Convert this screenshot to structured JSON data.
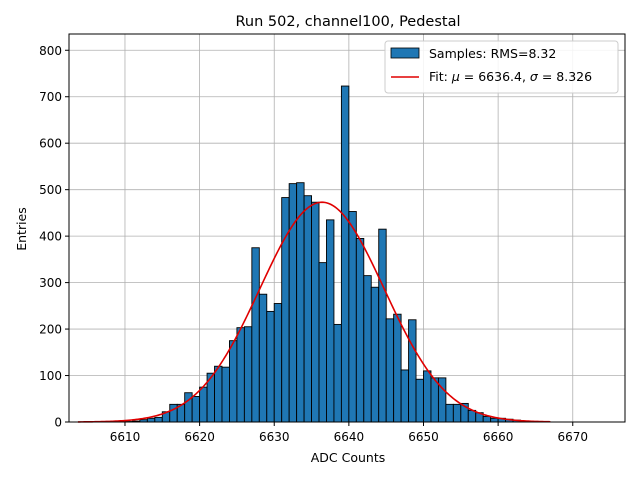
{
  "chart_data": {
    "type": "bar",
    "title": "Run 502, channel100, Pedestal",
    "xlabel": "ADC Counts",
    "ylabel": "Entries",
    "xlim": [
      6602.5,
      6677
    ],
    "ylim": [
      0,
      835
    ],
    "xticks": [
      6610,
      6620,
      6630,
      6640,
      6650,
      6660,
      6670
    ],
    "yticks": [
      0,
      100,
      200,
      300,
      400,
      500,
      600,
      700,
      800
    ],
    "grid": true,
    "legend_position": "top-right",
    "histogram": {
      "name": "Samples: RMS=8.32",
      "color": "#1f77b4",
      "bin_width": 1,
      "bins": [
        {
          "x": 6610,
          "y": 1
        },
        {
          "x": 6611,
          "y": 2
        },
        {
          "x": 6612,
          "y": 5
        },
        {
          "x": 6613,
          "y": 8
        },
        {
          "x": 6614,
          "y": 10
        },
        {
          "x": 6615,
          "y": 22
        },
        {
          "x": 6616,
          "y": 38
        },
        {
          "x": 6617,
          "y": 38
        },
        {
          "x": 6618,
          "y": 63
        },
        {
          "x": 6619,
          "y": 55
        },
        {
          "x": 6620,
          "y": 75
        },
        {
          "x": 6621,
          "y": 105
        },
        {
          "x": 6622,
          "y": 120
        },
        {
          "x": 6623,
          "y": 118
        },
        {
          "x": 6624,
          "y": 175
        },
        {
          "x": 6625,
          "y": 203
        },
        {
          "x": 6626,
          "y": 205
        },
        {
          "x": 6627,
          "y": 375
        },
        {
          "x": 6628,
          "y": 275
        },
        {
          "x": 6629,
          "y": 238
        },
        {
          "x": 6630,
          "y": 255
        },
        {
          "x": 6631,
          "y": 483
        },
        {
          "x": 6632,
          "y": 513
        },
        {
          "x": 6633,
          "y": 515
        },
        {
          "x": 6634,
          "y": 487
        },
        {
          "x": 6635,
          "y": 473
        },
        {
          "x": 6636,
          "y": 343
        },
        {
          "x": 6637,
          "y": 435
        },
        {
          "x": 6638,
          "y": 210
        },
        {
          "x": 6639,
          "y": 723
        },
        {
          "x": 6640,
          "y": 453
        },
        {
          "x": 6641,
          "y": 395
        },
        {
          "x": 6642,
          "y": 315
        },
        {
          "x": 6643,
          "y": 290
        },
        {
          "x": 6644,
          "y": 415
        },
        {
          "x": 6645,
          "y": 222
        },
        {
          "x": 6646,
          "y": 232
        },
        {
          "x": 6647,
          "y": 112
        },
        {
          "x": 6648,
          "y": 220
        },
        {
          "x": 6649,
          "y": 92
        },
        {
          "x": 6650,
          "y": 110
        },
        {
          "x": 6651,
          "y": 95
        },
        {
          "x": 6652,
          "y": 95
        },
        {
          "x": 6653,
          "y": 38
        },
        {
          "x": 6654,
          "y": 38
        },
        {
          "x": 6655,
          "y": 40
        },
        {
          "x": 6656,
          "y": 25
        },
        {
          "x": 6657,
          "y": 20
        },
        {
          "x": 6658,
          "y": 12
        },
        {
          "x": 6659,
          "y": 8
        },
        {
          "x": 6660,
          "y": 8
        },
        {
          "x": 6661,
          "y": 6
        },
        {
          "x": 6662,
          "y": 4
        },
        {
          "x": 6663,
          "y": 2
        },
        {
          "x": 6664,
          "y": 1
        }
      ]
    },
    "fit": {
      "name_prefix": "Fit: ",
      "mu_symbol": "μ",
      "sigma_symbol": "σ",
      "mu": 6636.4,
      "sigma": 8.326,
      "amplitude": 473,
      "x_range": [
        6603.7,
        6667
      ],
      "color": "#e00000"
    }
  }
}
